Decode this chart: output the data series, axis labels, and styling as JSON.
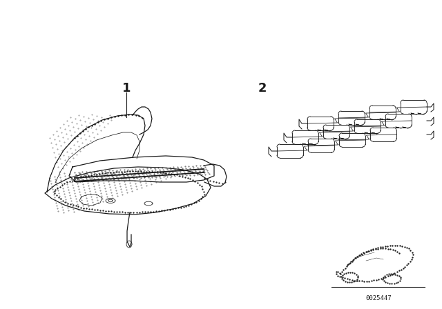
{
  "background_color": "#ffffff",
  "part_number_bottom": "0025447",
  "label1": "1",
  "label2": "2",
  "fig_width": 6.4,
  "fig_height": 4.48,
  "dpi": 100,
  "line_color": "#1a1a1a"
}
